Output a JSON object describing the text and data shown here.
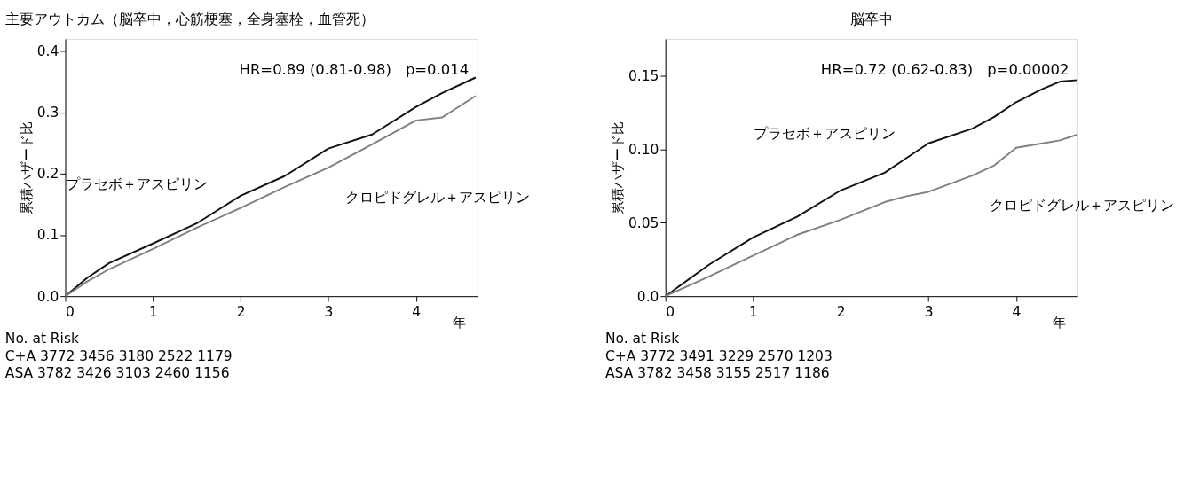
{
  "chart_data": [
    {
      "type": "line",
      "title": "主要アウトカム（脳卒中，心筋梗塞，全身塞栓，血管死）",
      "ylabel": "累積ハザード比",
      "xlabel": "年",
      "x": [
        0,
        0.25,
        0.5,
        1,
        1.5,
        2,
        2.5,
        3,
        3.5,
        4,
        4.3,
        4.68
      ],
      "series": [
        {
          "name": "プラセボ＋アスピリン",
          "color": "#111111",
          "values": [
            0,
            0.03,
            0.054,
            0.086,
            0.119,
            0.164,
            0.196,
            0.241,
            0.264,
            0.309,
            0.332,
            0.357
          ]
        },
        {
          "name": "クロピドグレル＋アスピリン",
          "color": "#808080",
          "values": [
            0,
            0.024,
            0.044,
            0.077,
            0.112,
            0.144,
            0.178,
            0.21,
            0.248,
            0.287,
            0.292,
            0.327
          ]
        }
      ],
      "xlim": [
        0,
        4.7
      ],
      "xticks": [
        0,
        1,
        2,
        3,
        4
      ],
      "ylim": [
        0,
        0.42
      ],
      "yticks": [
        {
          "value": 0,
          "label": "0.0"
        },
        {
          "value": 0.1,
          "label": "0.1"
        },
        {
          "value": 0.2,
          "label": "0.2"
        },
        {
          "value": 0.3,
          "label": "0.3"
        },
        {
          "value": 0.4,
          "label": "0.4"
        }
      ],
      "grid": false,
      "legend": false,
      "annotations": [
        "HR=0.89 (0.81-0.98)　p=0.014",
        "No. at Risk",
        "C+A 3772 3456 3180 2522 1179",
        "ASA 3782 3426 3103 2460 1156"
      ]
    },
    {
      "type": "line",
      "title": "脳卒中",
      "ylabel": "累積ハザード比",
      "xlabel": "年",
      "x": [
        0,
        0.5,
        1,
        1.5,
        2,
        2.5,
        2.75,
        3,
        3.5,
        3.75,
        4,
        4.3,
        4.5,
        4.7
      ],
      "series": [
        {
          "name": "プラセボ＋アスピリン",
          "color": "#111111",
          "values": [
            0,
            0.0215,
            0.04,
            0.054,
            0.072,
            0.084,
            0.094,
            0.104,
            0.114,
            0.122,
            0.132,
            0.141,
            0.146,
            0.147
          ]
        },
        {
          "name": "クロピドグレル＋アスピリン",
          "color": "#808080",
          "values": [
            0,
            0.0135,
            0.0276,
            0.0417,
            0.052,
            0.064,
            0.068,
            0.071,
            0.082,
            0.089,
            0.101,
            0.104,
            0.106,
            0.11
          ]
        }
      ],
      "xlim": [
        0,
        4.7
      ],
      "xticks": [
        0,
        1,
        2,
        3,
        4
      ],
      "ylim": [
        0,
        0.175
      ],
      "yticks": [
        {
          "value": 0,
          "label": "0.0"
        },
        {
          "value": 0.05,
          "label": "0.05"
        },
        {
          "value": 0.1,
          "label": "0.10"
        },
        {
          "value": 0.15,
          "label": "0.15"
        }
      ],
      "grid": false,
      "legend": false,
      "annotations": [
        "HR=0.72 (0.62-0.83)　p=0.00002",
        "No. at Risk",
        "C+A 3772 3491 3229 2570 1203",
        "ASA 3782 3458 3155 2517 1186"
      ]
    }
  ]
}
